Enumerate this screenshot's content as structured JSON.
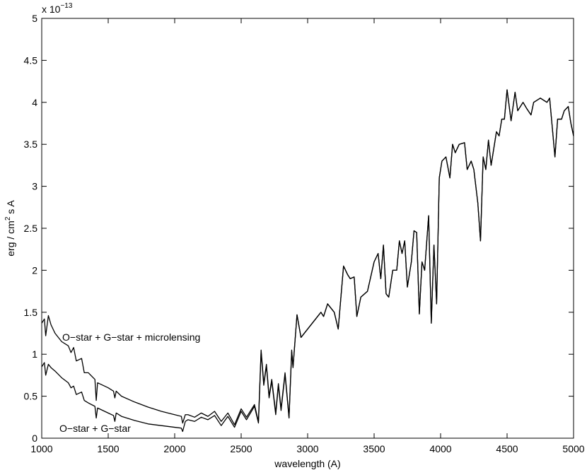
{
  "chart_data": {
    "type": "line",
    "x_label": "wavelength (A)",
    "y_label": {
      "before": "erg / cm",
      "superscript": "2",
      "after": " s A"
    },
    "multiplier": {
      "base": "x 10",
      "exponent": "−13"
    },
    "annotations": [
      "O−star + G−star + microlensing",
      "O−star + G−star"
    ],
    "xlim": [
      1000,
      5000
    ],
    "xticks": [
      1000,
      1500,
      2000,
      2500,
      3000,
      3500,
      4000,
      4500,
      5000
    ],
    "ylim": [
      0,
      5
    ],
    "yticks": [
      0,
      0.5,
      1,
      1.5,
      2,
      2.5,
      3,
      3.5,
      4,
      4.5,
      5
    ],
    "grid": false,
    "x": [
      1000,
      1020,
      1030,
      1050,
      1070,
      1100,
      1150,
      1200,
      1220,
      1240,
      1260,
      1300,
      1320,
      1350,
      1400,
      1410,
      1420,
      1500,
      1540,
      1550,
      1560,
      1600,
      1700,
      1800,
      1900,
      2000,
      2050,
      2060,
      2080,
      2100,
      2150,
      2200,
      2250,
      2300,
      2350,
      2400,
      2450,
      2500,
      2540,
      2600,
      2630,
      2650,
      2670,
      2690,
      2710,
      2730,
      2760,
      2780,
      2800,
      2830,
      2860,
      2880,
      2890,
      2920,
      2950,
      3000,
      3050,
      3100,
      3120,
      3150,
      3200,
      3230,
      3270,
      3300,
      3320,
      3350,
      3370,
      3400,
      3450,
      3500,
      3530,
      3550,
      3570,
      3590,
      3610,
      3640,
      3670,
      3690,
      3710,
      3730,
      3750,
      3780,
      3800,
      3820,
      3840,
      3860,
      3880,
      3910,
      3930,
      3950,
      3970,
      3990,
      4010,
      4040,
      4070,
      4090,
      4110,
      4140,
      4180,
      4200,
      4230,
      4250,
      4280,
      4300,
      4320,
      4340,
      4360,
      4380,
      4420,
      4440,
      4460,
      4480,
      4500,
      4530,
      4560,
      4580,
      4620,
      4650,
      4680,
      4700,
      4750,
      4800,
      4820,
      4860,
      4880,
      4910,
      4930,
      4960,
      4980,
      5000
    ],
    "series": [
      {
        "color": "#000000",
        "values": [
          1.37,
          1.42,
          1.22,
          1.46,
          1.35,
          1.25,
          1.15,
          1.1,
          1.02,
          1.08,
          0.92,
          0.95,
          0.78,
          0.78,
          0.7,
          0.45,
          0.66,
          0.6,
          0.56,
          0.48,
          0.56,
          0.5,
          0.43,
          0.37,
          0.32,
          0.28,
          0.26,
          0.18,
          0.28,
          0.28,
          0.25,
          0.3,
          0.26,
          0.32,
          0.2,
          0.3,
          0.16,
          0.35,
          0.25,
          0.4,
          0.2,
          1.05,
          0.65,
          0.88,
          0.5,
          0.7,
          0.3,
          0.65,
          0.35,
          0.78,
          0.25,
          1.05,
          0.85,
          1.47,
          1.2,
          1.3,
          1.4,
          1.5,
          1.45,
          1.6,
          1.5,
          1.3,
          2.05,
          1.95,
          1.9,
          1.92,
          1.45,
          1.68,
          1.75,
          2.1,
          2.2,
          1.9,
          2.3,
          1.72,
          1.68,
          2.0,
          2.0,
          2.35,
          2.2,
          2.35,
          1.8,
          2.1,
          2.47,
          2.45,
          1.48,
          2.1,
          2.0,
          2.65,
          1.37,
          2.3,
          1.6,
          3.1,
          3.3,
          3.35,
          3.1,
          3.5,
          3.4,
          3.5,
          3.52,
          3.2,
          3.3,
          3.2,
          2.8,
          2.35,
          3.35,
          3.2,
          3.55,
          3.25,
          3.65,
          3.6,
          3.8,
          3.8,
          4.15,
          3.78,
          4.12,
          3.9,
          4.0,
          3.92,
          3.85,
          4.0,
          4.05,
          4.0,
          4.05,
          3.35,
          3.8,
          3.8,
          3.9,
          3.95,
          3.75,
          3.6
        ]
      },
      {
        "color": "#000000",
        "values": [
          0.85,
          0.9,
          0.75,
          0.88,
          0.84,
          0.8,
          0.72,
          0.66,
          0.6,
          0.62,
          0.52,
          0.55,
          0.45,
          0.42,
          0.38,
          0.24,
          0.36,
          0.3,
          0.27,
          0.2,
          0.3,
          0.26,
          0.21,
          0.17,
          0.15,
          0.13,
          0.12,
          0.08,
          0.2,
          0.22,
          0.2,
          0.25,
          0.22,
          0.27,
          0.15,
          0.26,
          0.13,
          0.32,
          0.22,
          0.38,
          0.18,
          1.03,
          0.63,
          0.86,
          0.48,
          0.68,
          0.28,
          0.63,
          0.33,
          0.76,
          0.24,
          1.03,
          0.84,
          1.47,
          1.2,
          1.3,
          1.4,
          1.5,
          1.45,
          1.6,
          1.5,
          1.3,
          2.05,
          1.95,
          1.9,
          1.92,
          1.45,
          1.68,
          1.75,
          2.1,
          2.2,
          1.9,
          2.3,
          1.72,
          1.68,
          2.0,
          2.0,
          2.35,
          2.2,
          2.35,
          1.8,
          2.1,
          2.47,
          2.45,
          1.48,
          2.1,
          2.0,
          2.65,
          1.37,
          2.3,
          1.6,
          3.1,
          3.3,
          3.35,
          3.1,
          3.5,
          3.4,
          3.5,
          3.52,
          3.2,
          3.3,
          3.2,
          2.8,
          2.35,
          3.35,
          3.2,
          3.55,
          3.25,
          3.65,
          3.6,
          3.8,
          3.8,
          4.15,
          3.78,
          4.12,
          3.9,
          4.0,
          3.92,
          3.85,
          4.0,
          4.05,
          4.0,
          4.05,
          3.35,
          3.8,
          3.8,
          3.9,
          3.95,
          3.75,
          3.6
        ]
      }
    ]
  }
}
